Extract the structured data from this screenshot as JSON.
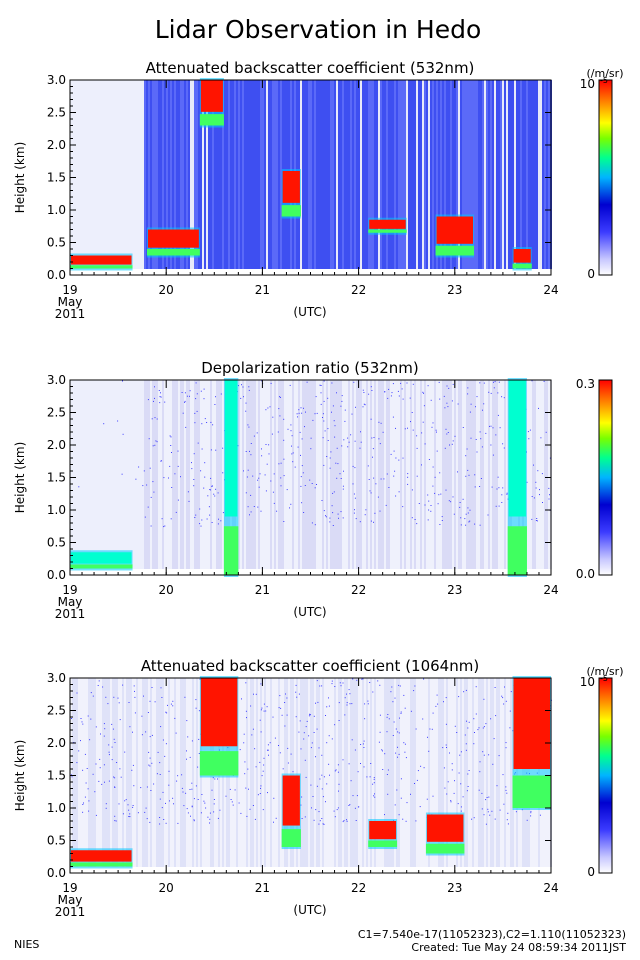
{
  "title": "Lidar Observation in Hedo",
  "time_axis": {
    "ticks": [
      "19",
      "20",
      "21",
      "22",
      "23",
      "24"
    ],
    "month": "May",
    "year": "2011",
    "unit": "(UTC)"
  },
  "height_axis": {
    "label": "Height (km)",
    "ticks": [
      "0.0",
      "0.5",
      "1.0",
      "1.5",
      "2.0",
      "2.5",
      "3.0"
    ]
  },
  "colors": {
    "colorbar": [
      "#ffffff",
      "#c8c8ff",
      "#3c3cff",
      "#0000d0",
      "#00b4ff",
      "#00ff90",
      "#78ff00",
      "#ffff00",
      "#ff8c00",
      "#ff0000"
    ],
    "background": "#ffffff"
  },
  "panels": [
    {
      "title": "Attenuated backscatter coefficient (532nm)",
      "colorbar": {
        "unit": "(/m/sr)",
        "max_label": "10",
        "max_exponent": "-5",
        "min_label": "0"
      }
    },
    {
      "title": "Depolarization ratio (532nm)",
      "colorbar": {
        "unit": "",
        "max_label": "0.3",
        "max_exponent": "",
        "min_label": "0.0"
      }
    },
    {
      "title": "Attenuated backscatter coefficient (1064nm)",
      "colorbar": {
        "unit": "(/m/sr)",
        "max_label": "10",
        "max_exponent": "-5",
        "min_label": "0"
      }
    }
  ],
  "footer": {
    "org": "NIES",
    "constants": "C1=7.540e-17(11052323),C2=1.110(11052323)",
    "created": "Created: Tue May 24 08:59:34 2011JST"
  },
  "chart_data": [
    {
      "type": "heatmap",
      "title": "Attenuated backscatter coefficient (532nm)",
      "x_range": [
        "2011-05-19",
        "2011-05-24"
      ],
      "x_ticks": [
        19,
        20,
        21,
        22,
        23,
        24
      ],
      "xlabel": "(UTC)",
      "ylabel": "Height (km)",
      "ylim": [
        0.0,
        3.0
      ],
      "y_ticks": [
        0.0,
        0.5,
        1.0,
        1.5,
        2.0,
        2.5,
        3.0
      ],
      "colorbar_range": [
        0,
        1e-05
      ],
      "colorbar_unit": "(/m/sr)",
      "strong_layers": [
        {
          "day_start": 19.0,
          "day_end": 19.65,
          "h_bottom": 0.1,
          "h_top": 0.3
        },
        {
          "day_start": 19.8,
          "day_end": 20.35,
          "h_bottom": 0.3,
          "h_top": 0.7
        },
        {
          "day_start": 20.35,
          "day_end": 20.6,
          "h_bottom": 2.3,
          "h_top": 3.0
        },
        {
          "day_start": 21.2,
          "day_end": 21.4,
          "h_bottom": 0.9,
          "h_top": 1.6
        },
        {
          "day_start": 22.1,
          "day_end": 22.5,
          "h_bottom": 0.65,
          "h_top": 0.85
        },
        {
          "day_start": 22.8,
          "day_end": 23.2,
          "h_bottom": 0.3,
          "h_top": 0.9
        },
        {
          "day_start": 23.6,
          "day_end": 23.8,
          "h_bottom": 0.1,
          "h_top": 0.4
        }
      ]
    },
    {
      "type": "heatmap",
      "title": "Depolarization ratio (532nm)",
      "x_range": [
        "2011-05-19",
        "2011-05-24"
      ],
      "x_ticks": [
        19,
        20,
        21,
        22,
        23,
        24
      ],
      "xlabel": "(UTC)",
      "ylabel": "Height (km)",
      "ylim": [
        0.0,
        3.0
      ],
      "y_ticks": [
        0.0,
        0.5,
        1.0,
        1.5,
        2.0,
        2.5,
        3.0
      ],
      "colorbar_range": [
        0.0,
        0.3
      ],
      "strong_layers": [
        {
          "day_start": 19.0,
          "day_end": 19.65,
          "h_bottom": 0.1,
          "h_top": 0.35
        },
        {
          "day_start": 20.6,
          "day_end": 20.75,
          "h_bottom": 0.0,
          "h_top": 3.0
        },
        {
          "day_start": 23.55,
          "day_end": 23.75,
          "h_bottom": 0.0,
          "h_top": 3.0
        }
      ]
    },
    {
      "type": "heatmap",
      "title": "Attenuated backscatter coefficient (1064nm)",
      "x_range": [
        "2011-05-19",
        "2011-05-24"
      ],
      "x_ticks": [
        19,
        20,
        21,
        22,
        23,
        24
      ],
      "xlabel": "(UTC)",
      "ylabel": "Height (km)",
      "ylim": [
        0.0,
        3.0
      ],
      "y_ticks": [
        0.0,
        0.5,
        1.0,
        1.5,
        2.0,
        2.5,
        3.0
      ],
      "colorbar_range": [
        0,
        1e-05
      ],
      "colorbar_unit": "(/m/sr)",
      "strong_layers": [
        {
          "day_start": 19.0,
          "day_end": 19.65,
          "h_bottom": 0.1,
          "h_top": 0.35
        },
        {
          "day_start": 20.35,
          "day_end": 20.75,
          "h_bottom": 1.5,
          "h_top": 3.0
        },
        {
          "day_start": 21.2,
          "day_end": 21.4,
          "h_bottom": 0.4,
          "h_top": 1.5
        },
        {
          "day_start": 22.1,
          "day_end": 22.4,
          "h_bottom": 0.4,
          "h_top": 0.8
        },
        {
          "day_start": 22.7,
          "day_end": 23.1,
          "h_bottom": 0.3,
          "h_top": 0.9
        },
        {
          "day_start": 23.6,
          "day_end": 24.0,
          "h_bottom": 1.0,
          "h_top": 3.0
        }
      ]
    }
  ]
}
